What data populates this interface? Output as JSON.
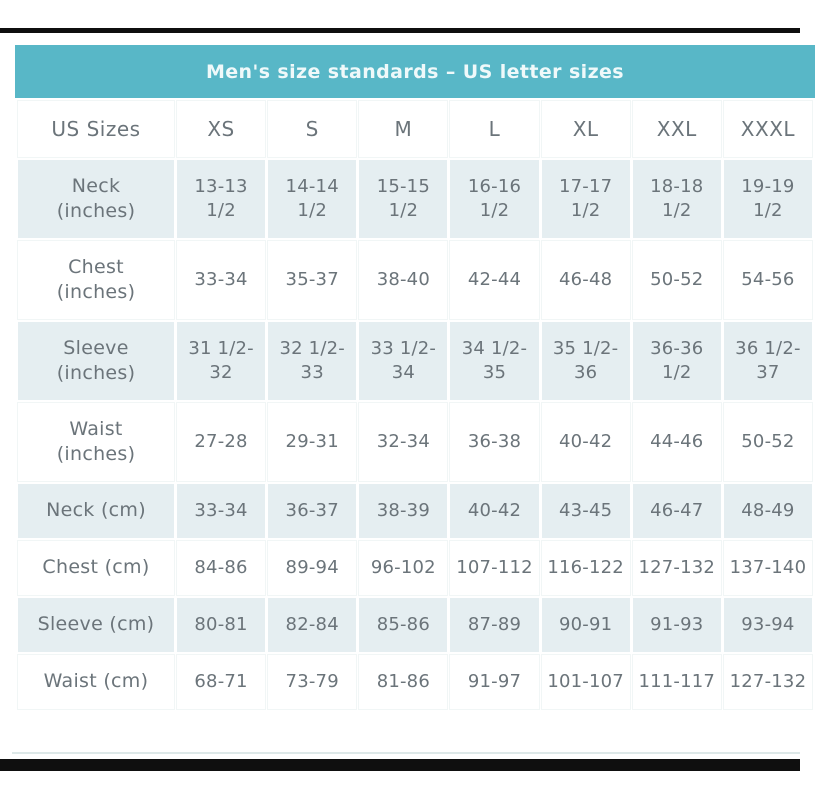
{
  "colors": {
    "header_bg": "#58b7c7",
    "header_text": "#eff9fa",
    "row_shaded": "#e5eef1",
    "cell_text": "#6b747a",
    "bar_color": "#0f0f0f",
    "divider": "#dde8e8"
  },
  "chart_data": {
    "type": "table",
    "title": "Men's size standards – US letter sizes",
    "columns": [
      "US Sizes",
      "XS",
      "S",
      "M",
      "L",
      "XL",
      "XXL",
      "XXXL"
    ],
    "rows": [
      {
        "label": "Neck\n(inches)",
        "values": [
          "13-13\n1/2",
          "14-14\n1/2",
          "15-15\n1/2",
          "16-16\n1/2",
          "17-17\n1/2",
          "18-18\n1/2",
          "19-19\n1/2"
        ]
      },
      {
        "label": "Chest\n(inches)",
        "values": [
          "33-34",
          "35-37",
          "38-40",
          "42-44",
          "46-48",
          "50-52",
          "54-56"
        ]
      },
      {
        "label": "Sleeve\n(inches)",
        "values": [
          "31 1/2-\n32",
          "32 1/2-\n33",
          "33 1/2-\n34",
          "34 1/2-\n35",
          "35 1/2-\n36",
          "36-36\n1/2",
          "36 1/2-\n37"
        ]
      },
      {
        "label": "Waist\n(inches)",
        "values": [
          "27-28",
          "29-31",
          "32-34",
          "36-38",
          "40-42",
          "44-46",
          "50-52"
        ]
      },
      {
        "label": "Neck (cm)",
        "values": [
          "33-34",
          "36-37",
          "38-39",
          "40-42",
          "43-45",
          "46-47",
          "48-49"
        ]
      },
      {
        "label": "Chest (cm)",
        "values": [
          "84-86",
          "89-94",
          "96-102",
          "107-112",
          "116-122",
          "127-132",
          "137-140"
        ]
      },
      {
        "label": "Sleeve (cm)",
        "values": [
          "80-81",
          "82-84",
          "85-86",
          "87-89",
          "90-91",
          "91-93",
          "93-94"
        ]
      },
      {
        "label": "Waist (cm)",
        "values": [
          "68-71",
          "73-79",
          "81-86",
          "91-97",
          "101-107",
          "111-117",
          "127-132"
        ]
      }
    ]
  }
}
